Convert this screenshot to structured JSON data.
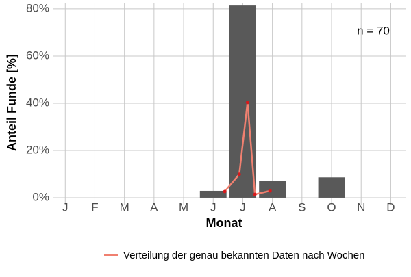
{
  "chart_data": {
    "type": "bar",
    "categories": [
      "J",
      "F",
      "M",
      "A",
      "M",
      "J",
      "J",
      "A",
      "S",
      "O",
      "N",
      "D"
    ],
    "values": [
      0,
      0,
      0,
      0,
      0,
      2.9,
      81.4,
      7.1,
      0,
      8.6,
      0,
      0
    ],
    "color": "#595959",
    "xlim": [
      0.6,
      12.5
    ],
    "ylim": [
      -3.2,
      82.3
    ],
    "yticks": [
      {
        "value": 0,
        "label": "0%"
      },
      {
        "value": 20,
        "label": "20%"
      },
      {
        "value": 40,
        "label": "40%"
      },
      {
        "value": 60,
        "label": "60%"
      },
      {
        "value": 80,
        "label": "80%"
      }
    ],
    "grid": true,
    "xlabel": "Monat",
    "ylabel": "Anteil Funde [%]",
    "annotation": "n = 70",
    "series": [
      {
        "type": "line",
        "name": "Verteilung der genau bekannten Daten nach Wochen",
        "color": "#f08070",
        "point_color": "#d7191c",
        "x": [
          6.39,
          6.88,
          7.16,
          7.41,
          7.92
        ],
        "values": [
          2.6,
          9.9,
          40.3,
          1.4,
          2.9
        ]
      }
    ],
    "legend": "bottom"
  }
}
